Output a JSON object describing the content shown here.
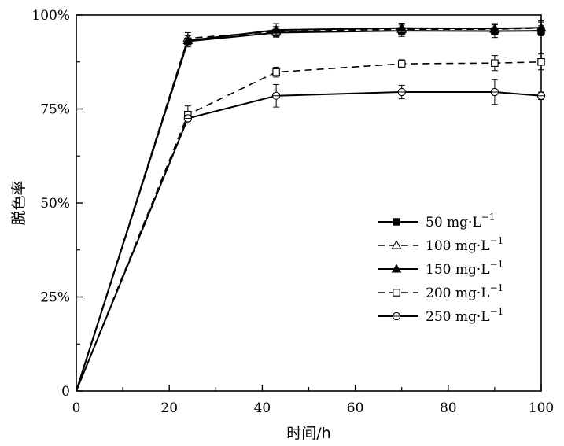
{
  "chart_data": {
    "type": "line",
    "xlabel": "时间/h",
    "ylabel": "脱色率",
    "xlim": [
      0,
      100
    ],
    "ylim": [
      0,
      100
    ],
    "x_ticks": [
      0,
      20,
      40,
      60,
      80,
      100
    ],
    "x_tick_labels": [
      "0",
      "20",
      "40",
      "60",
      "80",
      "100"
    ],
    "y_ticks": [
      0,
      25,
      50,
      75,
      100
    ],
    "y_tick_labels": [
      "0",
      "25%",
      "50%",
      "75%",
      "100%"
    ],
    "legend_position": "right",
    "series": [
      {
        "name": "50 mg·L",
        "superscript": "−1",
        "marker": "square-filled",
        "dash": "solid",
        "x": [
          0,
          24,
          43,
          70,
          90,
          100
        ],
        "y": [
          0,
          93,
          95.3,
          95.8,
          95.7,
          95.8
        ],
        "err": [
          0,
          1.5,
          1.2,
          1.5,
          1.7,
          1.3
        ]
      },
      {
        "name": "100 mg·L",
        "superscript": "−1",
        "marker": "triangle-open",
        "dash": "dashed",
        "x": [
          0,
          24,
          43,
          70,
          90,
          100
        ],
        "y": [
          0,
          93.8,
          95.6,
          96.2,
          96.2,
          96.5
        ],
        "err": [
          0,
          1.5,
          1.3,
          1.4,
          1.5,
          1.6
        ]
      },
      {
        "name": "150 mg·L",
        "superscript": "−1",
        "marker": "triangle-filled",
        "dash": "solid",
        "x": [
          0,
          24,
          43,
          70,
          90,
          100
        ],
        "y": [
          0,
          93.2,
          96,
          96.5,
          96.4,
          96.6
        ],
        "err": [
          0,
          1.4,
          1.7,
          1.3,
          1.3,
          1.8
        ]
      },
      {
        "name": "200 mg·L",
        "superscript": "−1",
        "marker": "square-open",
        "dash": "dashed",
        "x": [
          0,
          24,
          43,
          70,
          90,
          100
        ],
        "y": [
          0,
          73.5,
          84.8,
          87,
          87.2,
          87.5
        ],
        "err": [
          0,
          2.3,
          1.3,
          1.1,
          2.0,
          2.1
        ]
      },
      {
        "name": "250 mg·L",
        "superscript": "−1",
        "marker": "circle-cross",
        "dash": "solid",
        "x": [
          0,
          24,
          43,
          70,
          90,
          100
        ],
        "y": [
          0,
          72.5,
          78.5,
          79.5,
          79.5,
          78.5
        ],
        "err": [
          0,
          0.8,
          3.0,
          1.8,
          3.3,
          1.0
        ]
      }
    ]
  }
}
